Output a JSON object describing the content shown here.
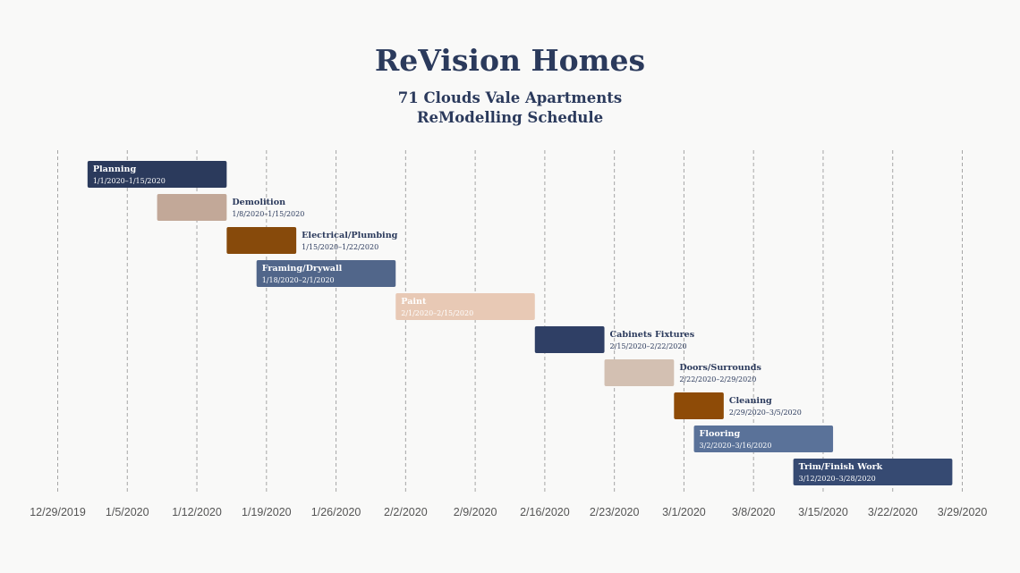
{
  "header": {
    "title": "ReVision Homes",
    "subtitle_line1": "71 Clouds Vale Apartments",
    "subtitle_line2": "ReModelling Schedule"
  },
  "chart_data": {
    "type": "gantt",
    "x_axis": {
      "range": [
        "12/29/2019",
        "3/29/2020"
      ],
      "tick_labels": [
        "12/29/2019",
        "1/5/2020",
        "1/12/2020",
        "1/19/2020",
        "1/26/2020",
        "2/2/2020",
        "2/9/2020",
        "2/16/2020",
        "2/23/2020",
        "3/1/2020",
        "3/8/2020",
        "3/15/2020",
        "3/22/2020",
        "3/29/2020"
      ],
      "grid": "vertical-dashed"
    },
    "tasks": [
      {
        "name": "Planning",
        "start": "1/1/2020",
        "end": "1/15/2020",
        "dates": "1/1/2020–1/15/2020",
        "color": "#2b3a5c",
        "label_position": "inside"
      },
      {
        "name": "Demolition",
        "start": "1/8/2020",
        "end": "1/15/2020",
        "dates": "1/8/2020–1/15/2020",
        "color": "#c2a898",
        "label_position": "right"
      },
      {
        "name": "Electrical/Plumbing",
        "start": "1/15/2020",
        "end": "1/22/2020",
        "dates": "1/15/2020–1/22/2020",
        "color": "#874a0b",
        "label_position": "right"
      },
      {
        "name": "Framing/Drywall",
        "start": "1/18/2020",
        "end": "2/1/2020",
        "dates": "1/18/2020–2/1/2020",
        "color": "#51668a",
        "label_position": "inside"
      },
      {
        "name": "Paint",
        "start": "2/1/2020",
        "end": "2/15/2020",
        "dates": "2/1/2020–2/15/2020",
        "color": "#e8c9b5",
        "label_position": "inside"
      },
      {
        "name": "Cabinets Fixtures",
        "start": "2/15/2020",
        "end": "2/22/2020",
        "dates": "2/15/2020–2/22/2020",
        "color": "#2f3f65",
        "label_position": "right"
      },
      {
        "name": "Doors/Surrounds",
        "start": "2/22/2020",
        "end": "2/29/2020",
        "dates": "2/22/2020–2/29/2020",
        "color": "#d3c0b2",
        "label_position": "right"
      },
      {
        "name": "Cleaning",
        "start": "2/29/2020",
        "end": "3/5/2020",
        "dates": "2/29/2020–3/5/2020",
        "color": "#8e4b07",
        "label_position": "right"
      },
      {
        "name": "Flooring",
        "start": "3/2/2020",
        "end": "3/16/2020",
        "dates": "3/2/2020–3/16/2020",
        "color": "#5a7299",
        "label_position": "inside"
      },
      {
        "name": "Trim/Finish Work",
        "start": "3/12/2020",
        "end": "3/28/2020",
        "dates": "3/12/2020–3/28/2020",
        "color": "#364a72",
        "label_position": "inside"
      }
    ]
  }
}
